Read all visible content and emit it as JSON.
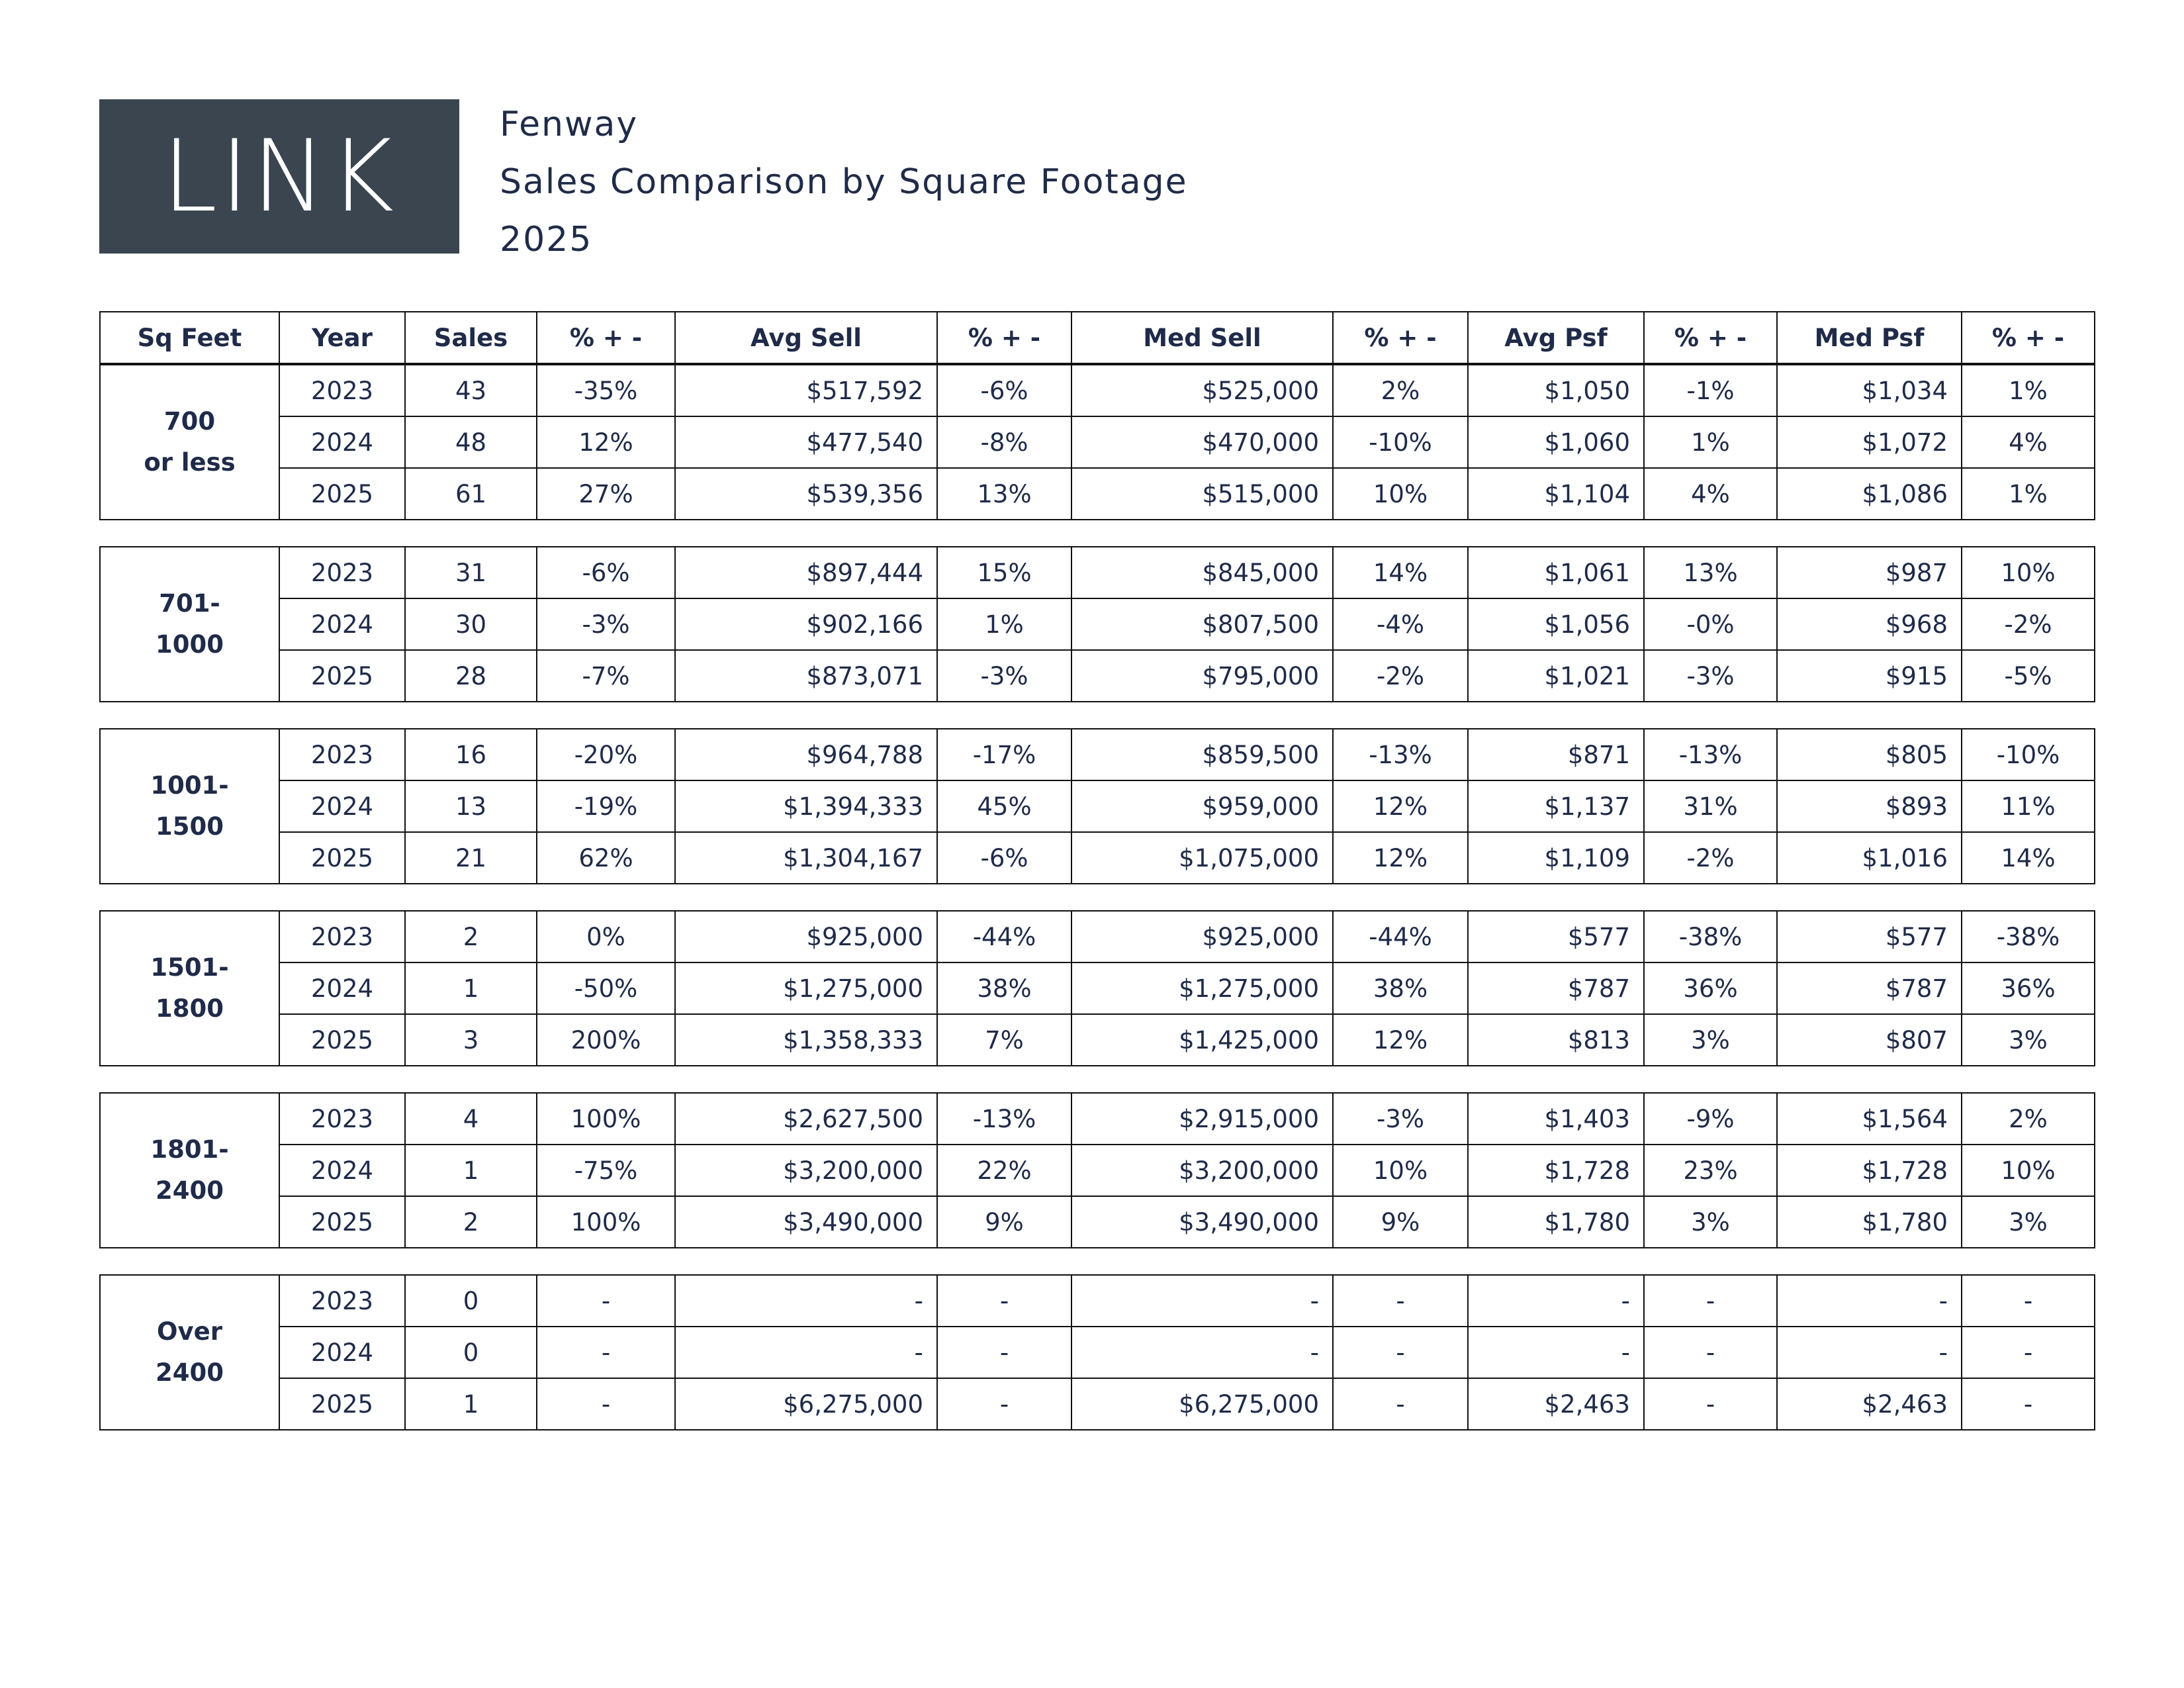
{
  "logo": {
    "text": "LINK",
    "background": "#3a4550"
  },
  "header": {
    "neighborhood": "Fenway",
    "title": "Sales Comparison by Square Footage",
    "year": "2025"
  },
  "columns": [
    "Sq Feet",
    "Year",
    "Sales",
    "% + -",
    "Avg Sell",
    "% + -",
    "Med Sell",
    "% + -",
    "Avg Psf",
    "% + -",
    "Med Psf",
    "% + -"
  ],
  "groups": [
    {
      "label_line1": "700",
      "label_line2": "or less",
      "rows": [
        [
          "2023",
          "43",
          "-35%",
          "$517,592",
          "-6%",
          "$525,000",
          "2%",
          "$1,050",
          "-1%",
          "$1,034",
          "1%"
        ],
        [
          "2024",
          "48",
          "12%",
          "$477,540",
          "-8%",
          "$470,000",
          "-10%",
          "$1,060",
          "1%",
          "$1,072",
          "4%"
        ],
        [
          "2025",
          "61",
          "27%",
          "$539,356",
          "13%",
          "$515,000",
          "10%",
          "$1,104",
          "4%",
          "$1,086",
          "1%"
        ]
      ]
    },
    {
      "label_line1": "701-",
      "label_line2": "1000",
      "rows": [
        [
          "2023",
          "31",
          "-6%",
          "$897,444",
          "15%",
          "$845,000",
          "14%",
          "$1,061",
          "13%",
          "$987",
          "10%"
        ],
        [
          "2024",
          "30",
          "-3%",
          "$902,166",
          "1%",
          "$807,500",
          "-4%",
          "$1,056",
          "-0%",
          "$968",
          "-2%"
        ],
        [
          "2025",
          "28",
          "-7%",
          "$873,071",
          "-3%",
          "$795,000",
          "-2%",
          "$1,021",
          "-3%",
          "$915",
          "-5%"
        ]
      ]
    },
    {
      "label_line1": "1001-",
      "label_line2": "1500",
      "rows": [
        [
          "2023",
          "16",
          "-20%",
          "$964,788",
          "-17%",
          "$859,500",
          "-13%",
          "$871",
          "-13%",
          "$805",
          "-10%"
        ],
        [
          "2024",
          "13",
          "-19%",
          "$1,394,333",
          "45%",
          "$959,000",
          "12%",
          "$1,137",
          "31%",
          "$893",
          "11%"
        ],
        [
          "2025",
          "21",
          "62%",
          "$1,304,167",
          "-6%",
          "$1,075,000",
          "12%",
          "$1,109",
          "-2%",
          "$1,016",
          "14%"
        ]
      ]
    },
    {
      "label_line1": "1501-",
      "label_line2": "1800",
      "rows": [
        [
          "2023",
          "2",
          "0%",
          "$925,000",
          "-44%",
          "$925,000",
          "-44%",
          "$577",
          "-38%",
          "$577",
          "-38%"
        ],
        [
          "2024",
          "1",
          "-50%",
          "$1,275,000",
          "38%",
          "$1,275,000",
          "38%",
          "$787",
          "36%",
          "$787",
          "36%"
        ],
        [
          "2025",
          "3",
          "200%",
          "$1,358,333",
          "7%",
          "$1,425,000",
          "12%",
          "$813",
          "3%",
          "$807",
          "3%"
        ]
      ]
    },
    {
      "label_line1": "1801-",
      "label_line2": "2400",
      "rows": [
        [
          "2023",
          "4",
          "100%",
          "$2,627,500",
          "-13%",
          "$2,915,000",
          "-3%",
          "$1,403",
          "-9%",
          "$1,564",
          "2%"
        ],
        [
          "2024",
          "1",
          "-75%",
          "$3,200,000",
          "22%",
          "$3,200,000",
          "10%",
          "$1,728",
          "23%",
          "$1,728",
          "10%"
        ],
        [
          "2025",
          "2",
          "100%",
          "$3,490,000",
          "9%",
          "$3,490,000",
          "9%",
          "$1,780",
          "3%",
          "$1,780",
          "3%"
        ]
      ]
    },
    {
      "label_line1": "Over",
      "label_line2": "2400",
      "rows": [
        [
          "2023",
          "0",
          "-",
          "-",
          "-",
          "-",
          "-",
          "-",
          "-",
          "-",
          "-"
        ],
        [
          "2024",
          "0",
          "-",
          "-",
          "-",
          "-",
          "-",
          "-",
          "-",
          "-",
          "-"
        ],
        [
          "2025",
          "1",
          "-",
          "$6,275,000",
          "-",
          "$6,275,000",
          "-",
          "$2,463",
          "-",
          "$2,463",
          "-"
        ]
      ]
    }
  ]
}
